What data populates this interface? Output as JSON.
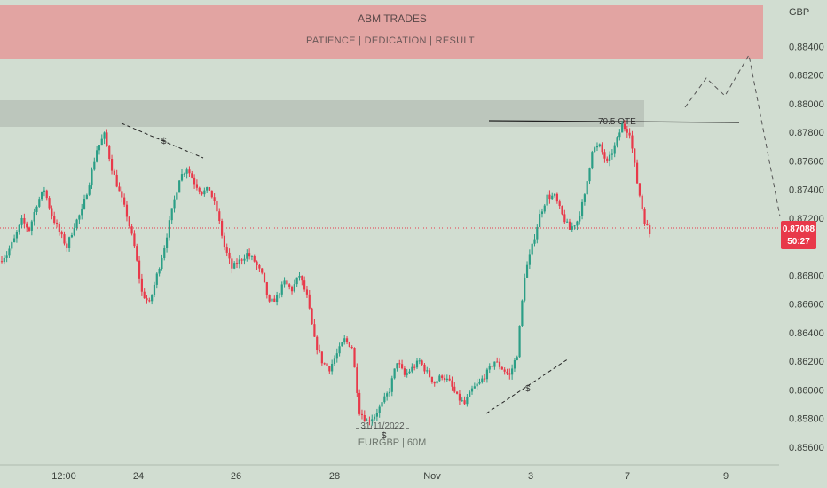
{
  "banner": {
    "title": "ABM TRADES",
    "subtitle": "PATIENCE   |   DEDICATION  |   RESULT"
  },
  "currency_label": "GBP",
  "symbol_watermark": "EURGBP | 60M",
  "current_price": {
    "value": "0.87088",
    "countdown": "50:27"
  },
  "annotations": {
    "ote_label": "70.5  OTE",
    "low_date": "31/11/2022",
    "liquidity_marker": "$"
  },
  "colors": {
    "background": "#d1ddd1",
    "bull": "#2b9e86",
    "bear": "#e8394a",
    "banner": "#e59a9a",
    "zone": "#b8c2b8",
    "price_line": "#e8394a"
  },
  "chart_data": {
    "type": "candlestick",
    "y_ticks": [
      "0.88400",
      "0.88200",
      "0.88000",
      "0.87800",
      "0.87600",
      "0.87400",
      "0.87200",
      "0.86800",
      "0.86600",
      "0.86400",
      "0.86200",
      "0.86000",
      "0.85800",
      "0.85600"
    ],
    "ylim": [
      0.855,
      0.886
    ],
    "x_ticks": [
      "12:00",
      "24",
      "26",
      "28",
      "Nov",
      "3",
      "7",
      "9"
    ],
    "key_levels": {
      "supply_zone": [
        0.8777,
        0.8795
      ],
      "ote_level": 0.878,
      "current_price": 0.87088
    },
    "path_points": [
      [
        0,
        0.869
      ],
      [
        3,
        0.8695
      ],
      [
        6,
        0.8705
      ],
      [
        9,
        0.8718
      ],
      [
        12,
        0.8712
      ],
      [
        15,
        0.873
      ],
      [
        18,
        0.874
      ],
      [
        21,
        0.8722
      ],
      [
        24,
        0.871
      ],
      [
        27,
        0.87
      ],
      [
        30,
        0.8715
      ],
      [
        33,
        0.8725
      ],
      [
        36,
        0.8745
      ],
      [
        39,
        0.8768
      ],
      [
        42,
        0.8778
      ],
      [
        45,
        0.8755
      ],
      [
        48,
        0.8738
      ],
      [
        51,
        0.8722
      ],
      [
        54,
        0.87
      ],
      [
        57,
        0.8668
      ],
      [
        60,
        0.866
      ],
      [
        63,
        0.868
      ],
      [
        66,
        0.87
      ],
      [
        69,
        0.8725
      ],
      [
        72,
        0.8748
      ],
      [
        75,
        0.8755
      ],
      [
        78,
        0.8745
      ],
      [
        81,
        0.8738
      ],
      [
        84,
        0.874
      ],
      [
        87,
        0.8725
      ],
      [
        90,
        0.87
      ],
      [
        93,
        0.8685
      ],
      [
        96,
        0.869
      ],
      [
        99,
        0.8695
      ],
      [
        102,
        0.869
      ],
      [
        105,
        0.868
      ],
      [
        108,
        0.866
      ],
      [
        111,
        0.8665
      ],
      [
        114,
        0.8675
      ],
      [
        117,
        0.867
      ],
      [
        120,
        0.868
      ],
      [
        123,
        0.8665
      ],
      [
        126,
        0.8635
      ],
      [
        129,
        0.862
      ],
      [
        132,
        0.8615
      ],
      [
        135,
        0.8625
      ],
      [
        138,
        0.8635
      ],
      [
        141,
        0.863
      ],
      [
        144,
        0.8585
      ],
      [
        147,
        0.8578
      ],
      [
        150,
        0.8582
      ],
      [
        153,
        0.859
      ],
      [
        156,
        0.86
      ],
      [
        159,
        0.862
      ],
      [
        162,
        0.861
      ],
      [
        165,
        0.8615
      ],
      [
        168,
        0.862
      ],
      [
        171,
        0.8612
      ],
      [
        174,
        0.8605
      ],
      [
        177,
        0.861
      ],
      [
        180,
        0.8605
      ],
      [
        183,
        0.8595
      ],
      [
        186,
        0.859
      ],
      [
        189,
        0.86
      ],
      [
        192,
        0.8605
      ],
      [
        195,
        0.8612
      ],
      [
        198,
        0.862
      ],
      [
        201,
        0.8615
      ],
      [
        204,
        0.861
      ],
      [
        207,
        0.8625
      ],
      [
        210,
        0.868
      ],
      [
        213,
        0.87
      ],
      [
        216,
        0.8722
      ],
      [
        219,
        0.8735
      ],
      [
        222,
        0.8735
      ],
      [
        225,
        0.8722
      ],
      [
        228,
        0.8712
      ],
      [
        231,
        0.8718
      ],
      [
        234,
        0.8735
      ],
      [
        237,
        0.8768
      ],
      [
        240,
        0.877
      ],
      [
        243,
        0.8758
      ],
      [
        246,
        0.877
      ],
      [
        249,
        0.8785
      ],
      [
        252,
        0.878
      ],
      [
        255,
        0.8745
      ],
      [
        258,
        0.8718
      ],
      [
        260,
        0.8709
      ]
    ]
  }
}
